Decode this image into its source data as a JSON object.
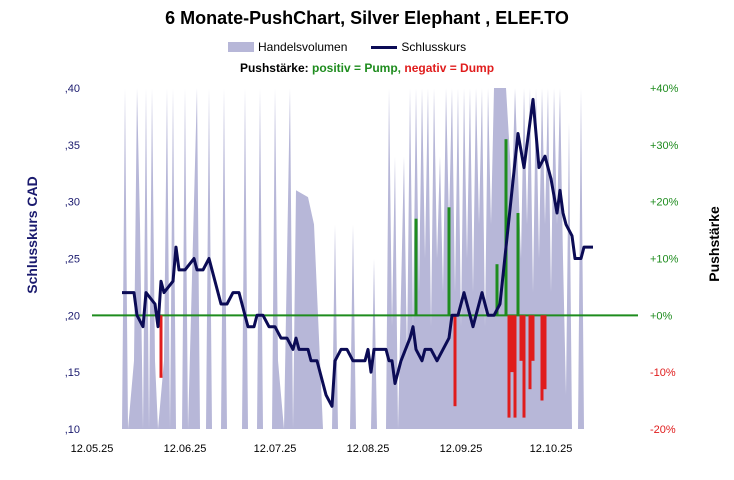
{
  "chart_data": {
    "type": "line",
    "title": "6 Monate-PushChart,  Silver Elephant , ELEF.TO",
    "legend": {
      "volume_label": "Handelsvolumen",
      "close_label": "Schlusskurs",
      "push_prefix": "Pushstärke:",
      "push_positive": "positiv = Pump,",
      "push_negative": "negativ = Dump"
    },
    "ylabel_left": "Schlusskurs CAD",
    "ylabel_right": "Pushstärke",
    "left_axis": {
      "ticks": [
        ",10",
        ",15",
        ",20",
        ",25",
        ",30",
        ",35",
        ",40"
      ],
      "ylim": [
        0.1,
        0.4
      ]
    },
    "right_axis": {
      "ticks": [
        "-20%",
        "-10%",
        "+0%",
        "+10%",
        "+20%",
        "+30%",
        "+40%"
      ],
      "ylim": [
        -20,
        40
      ]
    },
    "x_ticks": [
      "12.05.25",
      "12.06.25",
      "12.07.25",
      "12.08.25",
      "12.09.25",
      "12.10.25"
    ],
    "x_tick_index": [
      0,
      31,
      61,
      92,
      123,
      153
    ],
    "day_count": 183,
    "series": [
      {
        "name": "Schlusskurs",
        "points": [
          [
            10,
            0.22
          ],
          [
            14,
            0.22
          ],
          [
            15,
            0.2
          ],
          [
            17,
            0.19
          ],
          [
            18,
            0.22
          ],
          [
            21,
            0.21
          ],
          [
            22,
            0.19
          ],
          [
            23,
            0.23
          ],
          [
            24,
            0.22
          ],
          [
            27,
            0.23
          ],
          [
            28,
            0.26
          ],
          [
            29,
            0.24
          ],
          [
            31,
            0.24
          ],
          [
            34,
            0.25
          ],
          [
            35,
            0.24
          ],
          [
            37,
            0.24
          ],
          [
            39,
            0.25
          ],
          [
            41,
            0.23
          ],
          [
            43,
            0.21
          ],
          [
            45,
            0.21
          ],
          [
            47,
            0.22
          ],
          [
            49,
            0.22
          ],
          [
            50,
            0.21
          ],
          [
            52,
            0.19
          ],
          [
            54,
            0.19
          ],
          [
            55,
            0.2
          ],
          [
            57,
            0.2
          ],
          [
            59,
            0.19
          ],
          [
            61,
            0.19
          ],
          [
            63,
            0.18
          ],
          [
            65,
            0.18
          ],
          [
            67,
            0.17
          ],
          [
            68,
            0.18
          ],
          [
            69,
            0.17
          ],
          [
            72,
            0.17
          ],
          [
            73,
            0.16
          ],
          [
            75,
            0.16
          ],
          [
            77,
            0.14
          ],
          [
            78,
            0.13
          ],
          [
            80,
            0.12
          ],
          [
            81,
            0.16
          ],
          [
            83,
            0.17
          ],
          [
            85,
            0.17
          ],
          [
            87,
            0.16
          ],
          [
            91,
            0.16
          ],
          [
            92,
            0.17
          ],
          [
            93,
            0.15
          ],
          [
            94,
            0.17
          ],
          [
            98,
            0.17
          ],
          [
            99,
            0.16
          ],
          [
            100,
            0.16
          ],
          [
            101,
            0.14
          ],
          [
            103,
            0.16
          ],
          [
            106,
            0.18
          ],
          [
            107,
            0.19
          ],
          [
            108,
            0.17
          ],
          [
            110,
            0.16
          ],
          [
            111,
            0.17
          ],
          [
            113,
            0.17
          ],
          [
            115,
            0.16
          ],
          [
            117,
            0.17
          ],
          [
            119,
            0.18
          ],
          [
            120,
            0.2
          ],
          [
            122,
            0.2
          ],
          [
            124,
            0.22
          ],
          [
            126,
            0.2
          ],
          [
            127,
            0.19
          ],
          [
            128,
            0.2
          ],
          [
            130,
            0.22
          ],
          [
            132,
            0.2
          ],
          [
            134,
            0.2
          ],
          [
            136,
            0.21
          ],
          [
            138,
            0.26
          ],
          [
            140,
            0.31
          ],
          [
            142,
            0.36
          ],
          [
            144,
            0.33
          ],
          [
            146,
            0.37
          ],
          [
            147,
            0.39
          ],
          [
            148,
            0.36
          ],
          [
            149,
            0.33
          ],
          [
            151,
            0.34
          ],
          [
            153,
            0.32
          ],
          [
            155,
            0.29
          ],
          [
            156,
            0.31
          ],
          [
            157,
            0.29
          ],
          [
            158,
            0.28
          ],
          [
            160,
            0.27
          ],
          [
            161,
            0.25
          ],
          [
            163,
            0.25
          ],
          [
            164,
            0.26
          ],
          [
            167,
            0.26
          ]
        ]
      }
    ],
    "push_bars": [
      [
        23,
        -11
      ],
      [
        108,
        17
      ],
      [
        119,
        19
      ],
      [
        121,
        -16
      ],
      [
        135,
        9
      ],
      [
        138,
        31
      ],
      [
        139,
        -18
      ],
      [
        140,
        -10
      ],
      [
        141,
        -18
      ],
      [
        142,
        18
      ],
      [
        143,
        -8
      ],
      [
        144,
        -18
      ],
      [
        146,
        -13
      ],
      [
        147,
        -8
      ],
      [
        150,
        -15
      ],
      [
        151,
        -13
      ]
    ],
    "volume_share": [
      [
        10,
        0
      ],
      [
        11,
        1
      ],
      [
        12,
        0
      ],
      [
        14,
        0.2
      ],
      [
        15,
        1
      ],
      [
        16,
        0.6
      ],
      [
        17,
        0
      ],
      [
        18,
        1
      ],
      [
        19,
        0
      ],
      [
        20,
        1
      ],
      [
        21,
        0.2
      ],
      [
        22,
        0
      ],
      [
        24,
        0.2
      ],
      [
        25,
        1
      ],
      [
        26,
        0
      ],
      [
        27,
        1
      ],
      [
        28,
        0
      ],
      [
        30,
        0
      ],
      [
        31,
        1
      ],
      [
        32,
        0
      ],
      [
        35,
        1
      ],
      [
        36,
        0
      ],
      [
        38,
        0
      ],
      [
        39,
        1
      ],
      [
        40,
        0
      ],
      [
        43,
        0
      ],
      [
        44,
        1
      ],
      [
        45,
        0
      ],
      [
        50,
        0
      ],
      [
        51,
        1
      ],
      [
        52,
        0
      ],
      [
        55,
        0
      ],
      [
        56,
        1
      ],
      [
        57,
        0
      ],
      [
        60,
        0
      ],
      [
        61,
        1
      ],
      [
        62,
        0.2
      ],
      [
        64,
        0
      ],
      [
        66,
        1
      ],
      [
        67,
        0
      ],
      [
        68,
        0.7
      ],
      [
        72,
        0.68
      ],
      [
        74,
        0.6
      ],
      [
        76,
        0.2
      ],
      [
        77,
        0
      ],
      [
        80,
        0
      ],
      [
        81,
        0.6
      ],
      [
        82,
        0
      ],
      [
        86,
        0
      ],
      [
        87,
        0.6
      ],
      [
        88,
        0
      ],
      [
        93,
        0
      ],
      [
        94,
        0.5
      ],
      [
        95,
        0
      ],
      [
        98,
        0
      ],
      [
        99,
        1
      ],
      [
        100,
        0.3
      ],
      [
        101,
        0.8
      ],
      [
        102,
        0
      ],
      [
        104,
        0.8
      ],
      [
        105,
        0.2
      ],
      [
        106,
        1
      ],
      [
        107,
        0.3
      ],
      [
        108,
        1
      ],
      [
        109,
        0.4
      ],
      [
        110,
        1
      ],
      [
        111,
        0.5
      ],
      [
        112,
        1
      ],
      [
        113,
        0.3
      ],
      [
        114,
        1
      ],
      [
        115,
        0.5
      ],
      [
        116,
        0.8
      ],
      [
        117,
        0.4
      ],
      [
        118,
        1
      ],
      [
        119,
        0.6
      ],
      [
        120,
        1
      ],
      [
        121,
        0.4
      ],
      [
        122,
        1
      ],
      [
        123,
        0.3
      ],
      [
        124,
        1
      ],
      [
        125,
        0.5
      ],
      [
        126,
        1
      ],
      [
        127,
        0.4
      ],
      [
        128,
        1
      ],
      [
        129,
        0.6
      ],
      [
        130,
        1
      ],
      [
        131,
        0.3
      ],
      [
        132,
        1
      ],
      [
        133,
        0.6
      ],
      [
        134,
        1
      ],
      [
        136,
        1
      ],
      [
        138,
        1
      ],
      [
        140,
        0.7
      ],
      [
        141,
        1
      ],
      [
        143,
        0.5
      ],
      [
        144,
        1
      ],
      [
        145,
        0.6
      ],
      [
        146,
        1
      ],
      [
        147,
        0.4
      ],
      [
        148,
        1
      ],
      [
        149,
        0.5
      ],
      [
        150,
        1
      ],
      [
        151,
        0.6
      ],
      [
        152,
        1
      ],
      [
        153,
        0.4
      ],
      [
        154,
        1
      ],
      [
        155,
        0.6
      ],
      [
        156,
        1
      ],
      [
        157,
        0.5
      ],
      [
        158,
        0.1
      ],
      [
        159,
        0.9
      ],
      [
        160,
        0
      ],
      [
        162,
        0
      ],
      [
        163,
        1
      ],
      [
        164,
        0
      ],
      [
        167,
        0
      ]
    ],
    "colors": {
      "close_line": "#0b0b55",
      "volume_fill": "#b7b7d8",
      "zero_line": "#1e8c1e",
      "pump": "#1e8c1e",
      "dump": "#e01c1c",
      "left_axis_text": "#1a1a6e",
      "right_axis_text": "#1e8c1e",
      "right_axis_negative_text": "#e01c1c"
    }
  }
}
